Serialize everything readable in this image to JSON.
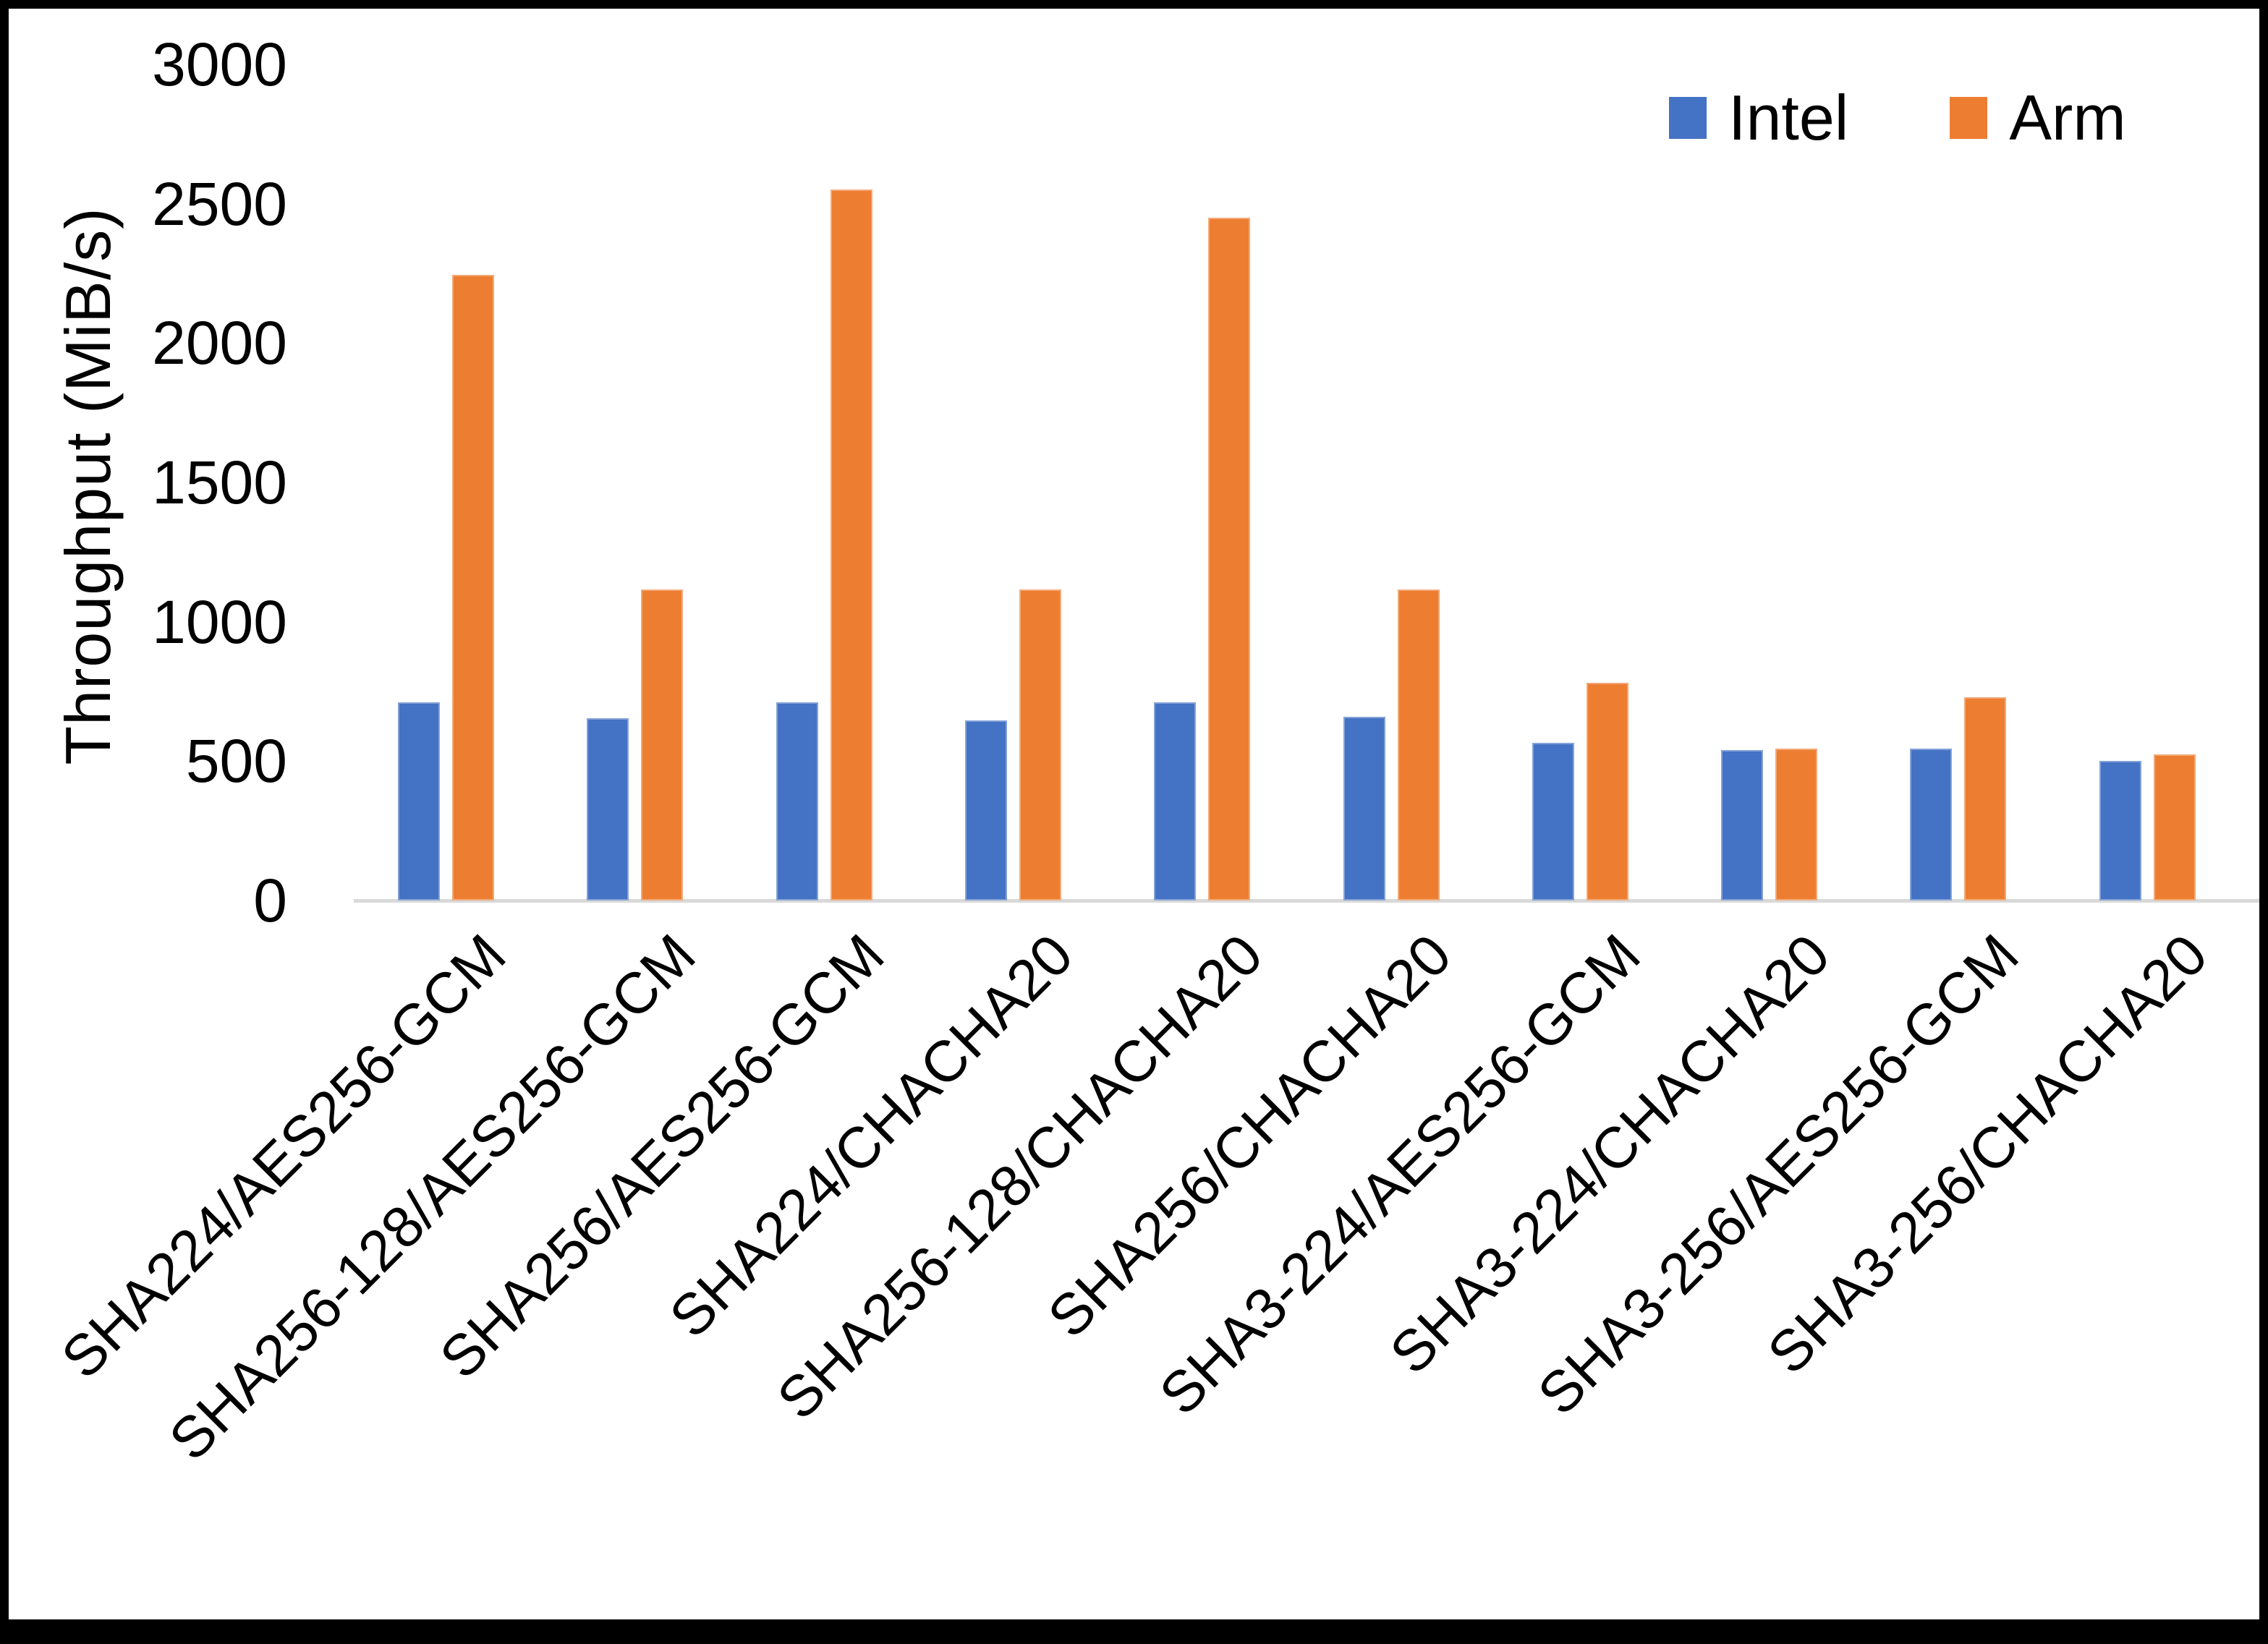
{
  "chart_data": {
    "type": "bar",
    "title": "",
    "categories": [
      "SHA224/AES256-GCM",
      "SHA256-128/AES256-GCM",
      "SHA256/AES256-GCM",
      "SHA224/CHACHA20",
      "SHA256-128/CHACHA20",
      "SHA256/CHACHA20",
      "SHA3-224/AES256-GCM",
      "SHA3-224/CHACHA20",
      "SHA3-256/AES256-GCM",
      "SHA3-256/CHACHA20"
    ],
    "series": [
      {
        "name": "Intel",
        "color": "#4472C4",
        "values": [
          710,
          655,
          710,
          645,
          710,
          660,
          565,
          540,
          545,
          500
        ]
      },
      {
        "name": "Arm",
        "color": "#ED7D31",
        "values": [
          2245,
          1115,
          2550,
          1115,
          2450,
          1115,
          780,
          545,
          730,
          525
        ]
      }
    ],
    "xlabel": "",
    "ylabel": "Throughput (MiB/s)",
    "ylim": [
      0,
      3000
    ],
    "y_ticks": [
      0,
      500,
      1000,
      1500,
      2000,
      2500,
      3000
    ],
    "grid": false,
    "legend_position": "top-right",
    "axis_line_color": "#d9d9d9",
    "text_color": "#000000"
  }
}
